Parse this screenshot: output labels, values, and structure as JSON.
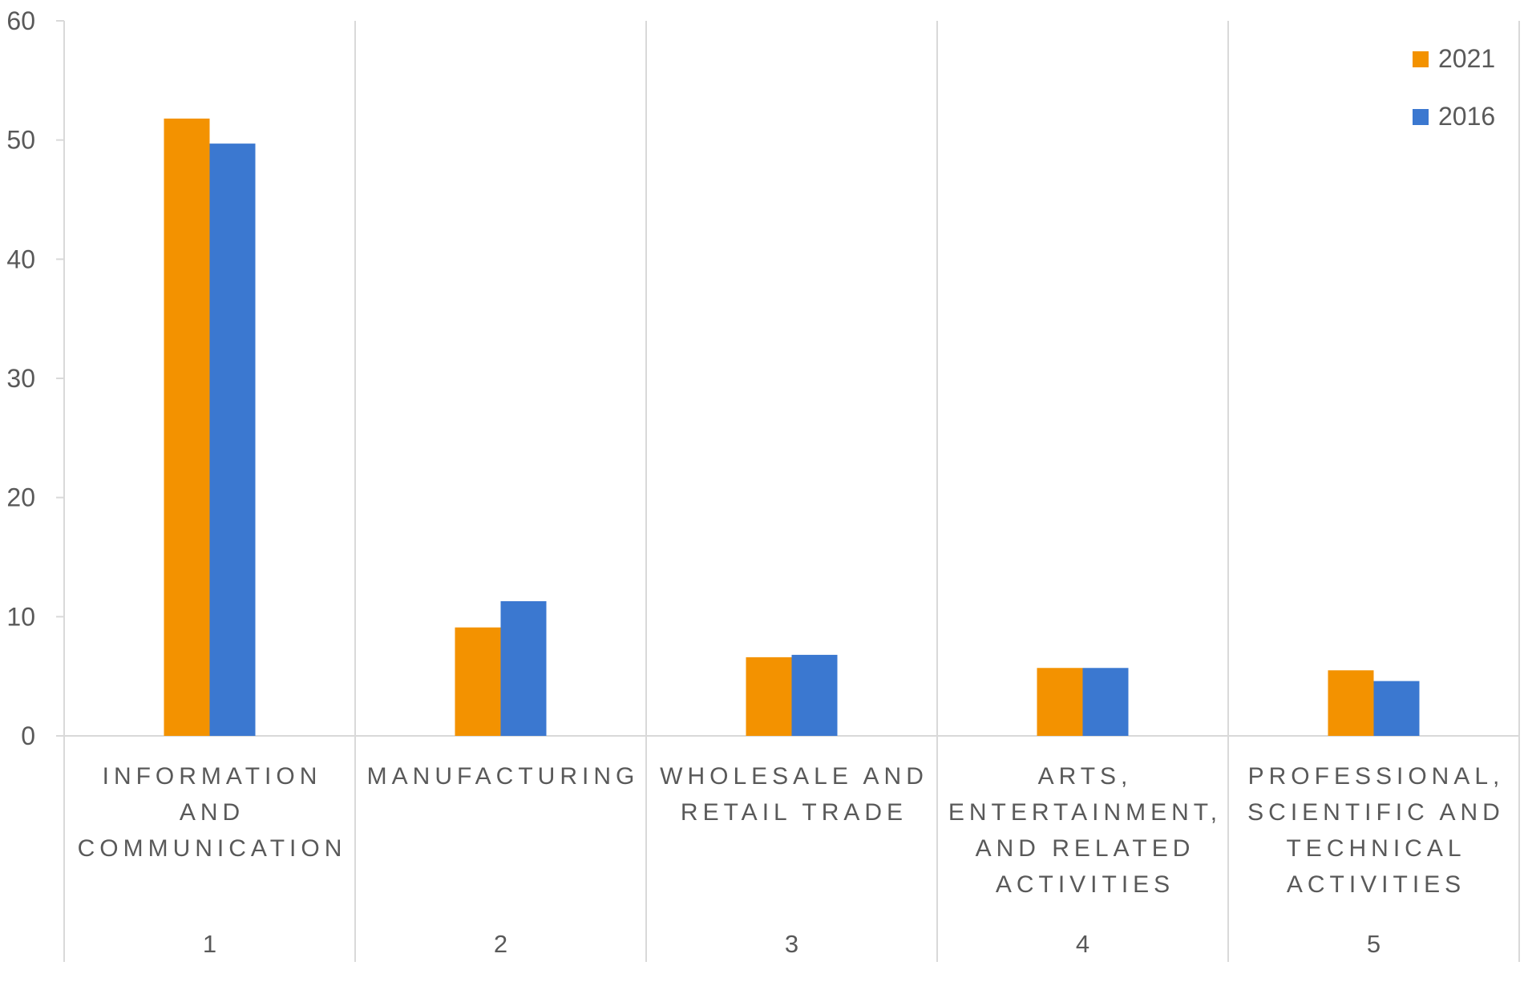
{
  "chart_data": {
    "type": "bar",
    "categories": [
      [
        "INFORMATION",
        "AND",
        "COMMUNICATION"
      ],
      [
        "MANUFACTURING"
      ],
      [
        "WHOLESALE AND",
        "RETAIL TRADE"
      ],
      [
        "ARTS,",
        "ENTERTAINMENT,",
        "AND RELATED",
        "ACTIVITIES"
      ],
      [
        "PROFESSIONAL,",
        "SCIENTIFIC AND",
        "TECHNICAL",
        "ACTIVITIES"
      ]
    ],
    "category_index": [
      "1",
      "2",
      "3",
      "4",
      "5"
    ],
    "series": [
      {
        "name": "2021",
        "color": "#F39200",
        "values": [
          51.8,
          9.1,
          6.6,
          5.7,
          5.5
        ]
      },
      {
        "name": "2016",
        "color": "#3B78D0",
        "values": [
          49.7,
          11.3,
          6.8,
          5.7,
          4.6
        ]
      }
    ],
    "ylim": [
      0,
      60
    ],
    "yticks": [
      "0",
      "10",
      "20",
      "30",
      "40",
      "50",
      "60"
    ],
    "legend_position": "top-right",
    "grid": true,
    "gridline_color": "#d9d9d9"
  }
}
